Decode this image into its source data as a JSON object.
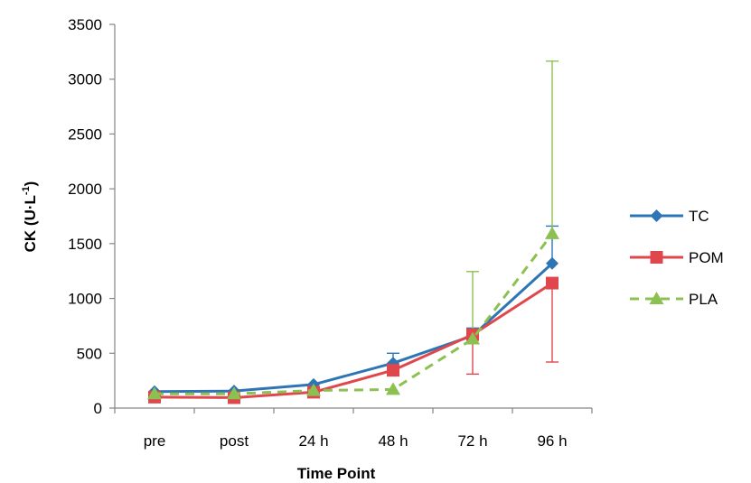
{
  "chart_data": {
    "type": "line",
    "title": "",
    "xlabel": "Time Point",
    "ylabel": "CK (U·L",
    "ylabel_superscript": "-1",
    "ylabel_suffix": ")",
    "categories": [
      "pre",
      "post",
      "24 h",
      "48 h",
      "72 h",
      "96 h"
    ],
    "ylim": [
      0,
      3500
    ],
    "yticks": [
      0,
      500,
      1000,
      1500,
      2000,
      2500,
      3000,
      3500
    ],
    "ytick_labels": [
      "0",
      "500",
      "1000",
      "1500",
      "2000",
      "2500",
      "3000",
      "3500"
    ],
    "grid": false,
    "legend_position": "right",
    "series": [
      {
        "name": "TC",
        "values": [
          150,
          155,
          215,
          410,
          660,
          1320
        ],
        "err_upper": [
          null,
          null,
          null,
          500,
          730,
          1660
        ],
        "err_lower": [
          null,
          null,
          null,
          null,
          null,
          null
        ],
        "color": "#2E75B6",
        "marker": "diamond",
        "dash": "solid"
      },
      {
        "name": "POM",
        "values": [
          100,
          95,
          145,
          345,
          670,
          1140
        ],
        "err_upper": [
          null,
          null,
          null,
          null,
          null,
          null
        ],
        "err_lower": [
          null,
          null,
          null,
          null,
          310,
          420
        ],
        "color": "#E0474C",
        "marker": "square",
        "dash": "solid"
      },
      {
        "name": "PLA",
        "values": [
          130,
          130,
          160,
          170,
          630,
          1590
        ],
        "err_upper": [
          null,
          null,
          null,
          null,
          1245,
          3165
        ],
        "err_lower": [
          null,
          null,
          null,
          null,
          null,
          null
        ],
        "color": "#8CC152",
        "marker": "triangle",
        "dash": "dashed"
      }
    ]
  }
}
